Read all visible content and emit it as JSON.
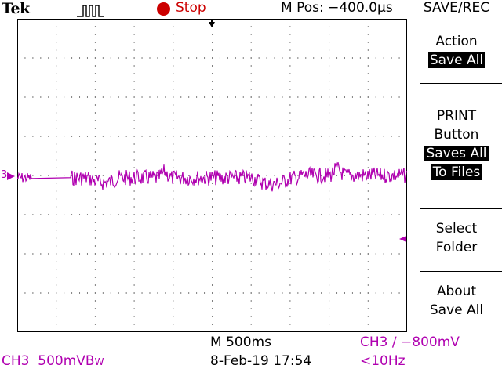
{
  "header": {
    "brand": "Tek",
    "acquisition_icon": "pulse-icon",
    "run_state": "Stop",
    "run_state_color": "#cc0000",
    "horizontal_position": "M Pos: −400.0µs"
  },
  "menu": {
    "title": "SAVE/REC",
    "items": [
      {
        "label": "Action",
        "value": "Save All"
      },
      {
        "label_lines": [
          "PRINT",
          "Button"
        ],
        "value_lines": [
          "Saves All",
          "To Files"
        ]
      },
      {
        "label_lines": [
          "Select",
          "Folder"
        ]
      },
      {
        "label_lines": [
          "About",
          "Save All"
        ]
      }
    ]
  },
  "channel": {
    "marker_label": "3",
    "color": "#b000b0",
    "readout": "CH3  500mVB",
    "bandwidth_suffix": "W"
  },
  "timebase": {
    "readout": "M 500ms",
    "datetime": "8-Feb-19 17:54"
  },
  "trigger": {
    "readout": "CH3 ∕ −800mV",
    "frequency": "<10Hz"
  }
}
